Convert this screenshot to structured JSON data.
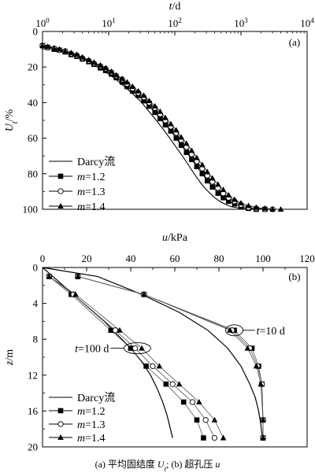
{
  "chart_data": [
    {
      "type": "line",
      "panel_label": "(a)",
      "xlabel": "t/d",
      "ylabel": "Ut/%",
      "x_scale": "log",
      "x_axis_position": "top",
      "xlim": [
        1,
        10000
      ],
      "ylim": [
        0,
        100
      ],
      "y_inverted": true,
      "x_tick_labels": [
        "10^0",
        "10^1",
        "10^2",
        "10^3",
        "10^4"
      ],
      "y_tick_labels": [
        "0",
        "20",
        "40",
        "60",
        "80",
        "100"
      ],
      "legend_position": "bottom-left",
      "legend": [
        "Darcy流",
        "m=1.2",
        "m=1.3",
        "m=1.4"
      ],
      "series": [
        {
          "name": "Darcy流",
          "marker": "none",
          "x": [
            1,
            2,
            3,
            5,
            8,
            12,
            20,
            30,
            50,
            70,
            100,
            130,
            160,
            200,
            250,
            300,
            400,
            500,
            700,
            1000,
            1500,
            2000
          ],
          "y": [
            7.5,
            10.5,
            13.0,
            17.0,
            21.5,
            26.0,
            33.0,
            39.0,
            49.0,
            56.0,
            64.0,
            70.0,
            75.0,
            80.5,
            85.5,
            89.0,
            93.5,
            96.0,
            98.5,
            99.5,
            100,
            100
          ]
        },
        {
          "name": "m=1.2",
          "marker": "filled-square",
          "x": [
            1,
            1.2,
            1.5,
            1.8,
            2.2,
            2.7,
            3.3,
            4,
            5,
            6,
            7.5,
            9,
            11,
            13,
            16,
            19,
            23,
            28,
            34,
            41,
            50,
            60,
            72,
            87,
            105,
            125,
            150,
            180,
            215,
            260,
            310,
            370,
            450,
            540,
            650,
            800,
            1000,
            1300,
            1700,
            2300
          ],
          "y": [
            8,
            9,
            10,
            10.5,
            11.5,
            13,
            14,
            15.5,
            17,
            18.5,
            20.5,
            22,
            24,
            26,
            28.5,
            31,
            33.5,
            36,
            39,
            42,
            45.5,
            49,
            52.5,
            56,
            60,
            64,
            68,
            72,
            76,
            80,
            84,
            87.5,
            91,
            93.5,
            95.5,
            97,
            98.5,
            99.5,
            100,
            100
          ]
        },
        {
          "name": "m=1.3",
          "marker": "open-circle",
          "x": [
            1,
            1.2,
            1.5,
            1.8,
            2.2,
            2.7,
            3.3,
            4,
            5,
            6,
            7.5,
            9,
            11,
            13,
            16,
            19,
            23,
            28,
            34,
            41,
            50,
            60,
            72,
            87,
            105,
            125,
            150,
            180,
            215,
            260,
            310,
            370,
            450,
            540,
            650,
            800,
            1000,
            1300,
            1700,
            2300,
            3000
          ],
          "y": [
            8,
            9,
            9.5,
            10.5,
            11,
            12.5,
            13.5,
            15,
            16.5,
            18,
            19.5,
            21,
            23,
            25,
            27,
            29.5,
            32,
            34.5,
            37,
            40,
            43,
            46.5,
            50,
            53.5,
            57,
            61,
            65,
            69,
            73,
            77,
            81,
            84.5,
            88,
            91,
            93.5,
            95.5,
            97.5,
            99,
            99.5,
            100,
            100
          ]
        },
        {
          "name": "m=1.4",
          "marker": "filled-triangle",
          "x": [
            1,
            1.2,
            1.5,
            1.8,
            2.2,
            2.7,
            3.3,
            4,
            5,
            6,
            7.5,
            9,
            11,
            13,
            16,
            19,
            23,
            28,
            34,
            41,
            50,
            60,
            72,
            87,
            105,
            125,
            150,
            180,
            215,
            260,
            310,
            370,
            450,
            540,
            650,
            800,
            1000,
            1300,
            1700,
            2300,
            3000,
            4000
          ],
          "y": [
            8,
            8.5,
            9.5,
            10,
            11,
            12,
            13,
            14.5,
            16,
            17.5,
            19,
            20.5,
            22.5,
            24.5,
            26.5,
            28.5,
            31,
            33.5,
            36,
            39,
            42,
            45,
            48.5,
            52,
            55.5,
            59.5,
            63,
            67,
            71,
            75,
            79,
            82.5,
            86,
            89,
            92,
            94.5,
            96.5,
            98,
            99,
            99.5,
            100,
            100
          ]
        }
      ]
    },
    {
      "type": "line",
      "panel_label": "(b)",
      "xlabel": "u/kPa",
      "ylabel": "z/m",
      "x_axis_position": "top",
      "xlim": [
        0,
        120
      ],
      "ylim": [
        0,
        20
      ],
      "y_inverted": true,
      "x_tick_labels": [
        "0",
        "20",
        "40",
        "60",
        "80",
        "100",
        "120"
      ],
      "y_tick_labels": [
        "0",
        "4",
        "8",
        "12",
        "16",
        "20"
      ],
      "legend_position": "bottom-left",
      "legend": [
        "Darcy流",
        "m=1.2",
        "m=1.3",
        "m=1.4"
      ],
      "annotations": [
        "t=10 d",
        "t=100 d"
      ],
      "groups": [
        {
          "time": "t=10 d",
          "series": [
            {
              "name": "Darcy流",
              "marker": "none",
              "x": [
                0,
                25,
                45,
                62,
                75,
                84,
                90,
                94,
                96.5,
                98,
                99,
                99.5,
                100
              ],
              "y": [
                0,
                1,
                3,
                5,
                7,
                9,
                11,
                13,
                14.5,
                16,
                17.5,
                18.5,
                19
              ]
            },
            {
              "name": "m=1.2",
              "marker": "filled-square",
              "x": [
                16,
                46,
                87,
                95,
                98,
                99.5,
                100,
                100
              ],
              "y": [
                1,
                3,
                7,
                9,
                11,
                13,
                17,
                19
              ]
            },
            {
              "name": "m=1.3",
              "marker": "open-circle",
              "x": [
                16,
                46,
                86,
                94,
                97.5,
                99.5,
                100,
                100
              ],
              "y": [
                1,
                3,
                7,
                9,
                11,
                13,
                17,
                19
              ]
            },
            {
              "name": "m=1.4",
              "marker": "filled-triangle",
              "x": [
                16,
                46,
                85,
                93,
                97,
                99,
                100,
                100
              ],
              "y": [
                1,
                3,
                7,
                9,
                11,
                13,
                17,
                19
              ]
            }
          ]
        },
        {
          "time": "t=100 d",
          "series": [
            {
              "name": "Darcy流",
              "marker": "none",
              "x": [
                0,
                7,
                14,
                21,
                28,
                34,
                40,
                45,
                49,
                52,
                54.5,
                56.5,
                58,
                59
              ],
              "y": [
                0,
                1.5,
                3,
                4.5,
                6,
                7.5,
                9,
                10.5,
                12,
                13.5,
                15,
                16.5,
                18,
                19
              ]
            },
            {
              "name": "m=1.2",
              "marker": "filled-square",
              "x": [
                3,
                13,
                31,
                40,
                47,
                56,
                64,
                70,
                73
              ],
              "y": [
                1,
                3,
                7,
                9,
                11,
                13,
                15,
                17,
                19
              ]
            },
            {
              "name": "m=1.3",
              "marker": "open-circle",
              "x": [
                3,
                14,
                33,
                42,
                50,
                59,
                68,
                74,
                78
              ],
              "y": [
                1,
                3,
                7,
                9,
                11,
                13,
                15,
                17,
                19
              ]
            },
            {
              "name": "m=1.4",
              "marker": "filled-triangle",
              "x": [
                3,
                15,
                35,
                45,
                53,
                62,
                71,
                78,
                82
              ],
              "y": [
                1,
                3,
                7,
                9,
                11,
                13,
                15,
                17,
                19
              ]
            }
          ]
        }
      ]
    }
  ],
  "caption": {
    "prefix_a": "(a)  平均固结度 ",
    "var_a": "U",
    "sub_a": "t",
    "mid": ";  (b)  超孔压 ",
    "var_b": "u"
  }
}
